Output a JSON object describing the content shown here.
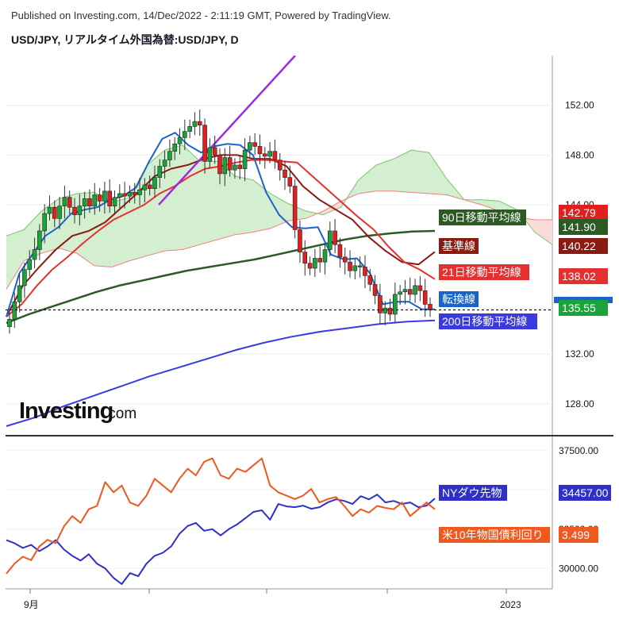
{
  "header": {
    "published": "Published on Investing.com, 14/Dec/2022 - 2:11:19 GMT, Powered by TradingView.",
    "symbol": "USD/JPY, リアルタイム外国為替:USD/JPY, D"
  },
  "logo": {
    "name": "Investing",
    "suffix": ".com"
  },
  "colors": {
    "up": "#1aa33a",
    "down": "#e11f1f",
    "kijun": "#8b1a10",
    "tenkan": "#1a63c8",
    "sma21": "#e53030",
    "sma90": "#2b5a23",
    "sma200": "#3a3ae0",
    "trend": "#9b2de0",
    "nydow": "#3030c8",
    "us10y": "#f0581e",
    "cloud_up": "#d4eed0",
    "cloud_down": "#fbdada"
  },
  "chart_data": [
    {
      "type": "candlestick",
      "title": "USD/JPY",
      "y_ticks": [
        "152.00",
        "148.00",
        "144.00",
        "132.00",
        "128.00"
      ],
      "ylim": [
        125.5,
        156.0
      ],
      "x_ticks": [
        "9月",
        "2023"
      ],
      "x_tick_dates": [
        "2022-09-01",
        "2023-01-01"
      ],
      "current_price": 135.55,
      "labels": [
        {
          "text": "90日移動平均線",
          "value": "141.90",
          "color": "#2b5a23"
        },
        {
          "text": "基準線",
          "value": "140.22",
          "color": "#8b1a10"
        },
        {
          "text": "21日移動平均線",
          "value": "138.02",
          "color": "#e53030"
        },
        {
          "text": "転換線",
          "value": "",
          "color": "#1a63c8"
        },
        {
          "text": "200日移動平均線",
          "value": "",
          "color": "#3a3ae0"
        },
        {
          "text": "",
          "value": "142.79",
          "color": "#e11f1f"
        },
        {
          "text": "",
          "value": "135.55",
          "color": "#1aa33a"
        }
      ],
      "closes": [
        134.8,
        136.2,
        137.5,
        138.8,
        139.6,
        140.4,
        141.9,
        143.3,
        143.8,
        142.9,
        143.9,
        144.6,
        143.8,
        143.2,
        143.9,
        144.5,
        143.9,
        144.8,
        144.3,
        145.1,
        143.9,
        144.6,
        144.9,
        144.7,
        145.0,
        144.8,
        145.2,
        145.6,
        145.3,
        146.2,
        147.1,
        147.6,
        148.3,
        148.9,
        149.4,
        149.9,
        150.3,
        150.7,
        150.4,
        147.5,
        148.6,
        148.0,
        146.5,
        147.8,
        146.8,
        147.2,
        146.9,
        148.4,
        149.0,
        148.7,
        148.1,
        147.9,
        148.3,
        147.6,
        146.8,
        146.2,
        145.5,
        142.0,
        140.2,
        139.3,
        138.9,
        139.7,
        139.4,
        140.4,
        141.9,
        140.8,
        139.8,
        139.4,
        138.7,
        139.1,
        139.0,
        138.3,
        137.6,
        136.7,
        135.3,
        135.7,
        135.2,
        136.8,
        137.0,
        137.2,
        136.8,
        137.5,
        137.1,
        136.0,
        135.55
      ],
      "sma90": [
        134.5,
        135.2,
        135.8,
        136.4,
        137.0,
        137.5,
        137.9,
        138.3,
        138.7,
        139.0,
        139.3,
        139.6,
        140.0,
        140.4,
        140.8,
        141.2,
        141.5,
        141.7,
        141.85,
        141.9
      ],
      "sma200": [
        126.2,
        126.9,
        127.8,
        128.6,
        129.4,
        130.2,
        130.9,
        131.6,
        132.3,
        132.9,
        133.4,
        133.8,
        134.1,
        134.4,
        134.6,
        134.7
      ],
      "tenkan": [
        135.0,
        138.5,
        140.0,
        141.5,
        142.2,
        143.3,
        143.6,
        143.8,
        144.4,
        144.7,
        145.4,
        147.5,
        149.3,
        149.8,
        148.8,
        148.2,
        148.7,
        148.9,
        148.8,
        148.0,
        145.0,
        143.2,
        142.2,
        142.1,
        142.2,
        140.0,
        139.6,
        139.7,
        138.5,
        136.0,
        136.2,
        136.2,
        135.6,
        135.6
      ],
      "kijun": [
        135.0,
        137.5,
        139.0,
        140.4,
        141.5,
        141.9,
        142.6,
        143.8,
        145.0,
        146.3,
        146.9,
        147.2,
        147.7,
        148.0,
        148.0,
        147.7,
        147.7,
        147.1,
        145.5,
        144.4,
        143.6,
        142.8,
        141.4,
        140.3,
        139.4,
        139.2,
        140.22
      ],
      "sma21": [
        135.0,
        136.0,
        137.5,
        138.8,
        139.8,
        140.9,
        141.9,
        142.8,
        143.4,
        144.0,
        144.9,
        145.5,
        146.3,
        146.9,
        147.1,
        147.4,
        147.6,
        147.6,
        147.5,
        147.4,
        146.3,
        145.2,
        144.1,
        143.0,
        142.0,
        140.6,
        139.4,
        138.8,
        138.02
      ],
      "cloud_a": [
        141.5,
        142.0,
        143.5,
        144.5,
        144.9,
        145.0,
        144.2,
        144.6,
        147.2,
        148.4,
        148.8,
        147.5,
        147.5,
        146.3,
        146.0,
        144.9,
        144.1,
        143.5,
        143.2,
        143.8,
        146.0,
        147.2,
        147.7,
        148.4,
        148.2,
        146.1,
        144.4,
        144.4,
        144.3,
        143.6,
        141.8,
        140.8
      ],
      "cloud_b": [
        137.2,
        139.5,
        140.1,
        140.5,
        140.1,
        139.1,
        139.0,
        139.5,
        139.9,
        140.3,
        140.4,
        140.8,
        141.2,
        141.6,
        141.8,
        142.1,
        142.7,
        142.9,
        143.5,
        144.3,
        144.9,
        145.1,
        145.1,
        145.0,
        144.9,
        144.8,
        144.4,
        144.0,
        143.5,
        143.0,
        142.8,
        142.79
      ]
    },
    {
      "type": "line",
      "y_ticks": [
        "37500.00",
        "35000.00",
        "32500.00",
        "30000.00"
      ],
      "ylim": [
        28800,
        38300
      ],
      "series": [
        {
          "name": "NYダウ先物",
          "value": "34457.00",
          "color": "#3030c8",
          "values": [
            31800,
            31600,
            31300,
            31500,
            31100,
            31400,
            31800,
            31200,
            30800,
            30500,
            30900,
            30300,
            30000,
            29400,
            29000,
            29700,
            29500,
            30300,
            30800,
            31000,
            31400,
            32200,
            32700,
            32900,
            32400,
            32500,
            32100,
            32500,
            32800,
            33200,
            33600,
            33700,
            33100,
            34100,
            33950,
            33900,
            34000,
            33800,
            33900,
            34200,
            34400,
            34300,
            34100,
            34600,
            34400,
            34700,
            34200,
            34300,
            34100,
            34200,
            33900,
            34000,
            34457
          ]
        },
        {
          "name": "米10年物国債利回り",
          "value": "3.499",
          "color": "#f0581e",
          "values": [
            2.55,
            2.7,
            2.8,
            2.75,
            2.95,
            3.05,
            3.0,
            3.25,
            3.4,
            3.3,
            3.5,
            3.55,
            3.9,
            3.75,
            3.85,
            3.6,
            3.55,
            3.7,
            3.95,
            3.85,
            3.75,
            3.95,
            4.1,
            4.0,
            4.2,
            4.25,
            4.0,
            3.95,
            4.1,
            4.05,
            4.15,
            4.25,
            3.85,
            3.75,
            3.7,
            3.65,
            3.7,
            3.8,
            3.6,
            3.65,
            3.68,
            3.55,
            3.4,
            3.5,
            3.45,
            3.55,
            3.52,
            3.5,
            3.6,
            3.4,
            3.5,
            3.6,
            3.499
          ]
        }
      ]
    }
  ]
}
